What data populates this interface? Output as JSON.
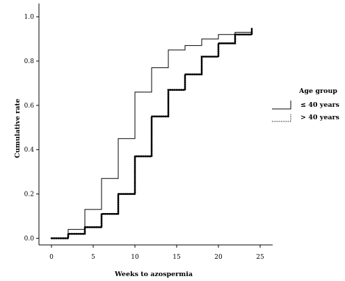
{
  "chart_data": {
    "type": "line",
    "step": true,
    "xlabel": "Weeks to azospermia",
    "ylabel": "Cumulative rate",
    "xlim": [
      -1.5,
      26.5
    ],
    "ylim": [
      -0.03,
      1.06
    ],
    "x_ticks": [
      0,
      5,
      10,
      15,
      20,
      25
    ],
    "x_tick_labels": [
      "0",
      "5",
      "10",
      "15",
      "20",
      "25"
    ],
    "y_ticks": [
      0.0,
      0.2,
      0.4,
      0.6,
      0.8,
      1.0
    ],
    "y_tick_labels": [
      "0.0",
      "0.2",
      "0.4",
      "0.6",
      "0.8",
      "1.0"
    ],
    "grid": false,
    "legend": {
      "title": "Age group",
      "placement": "right"
    },
    "series": [
      {
        "name": "≤ 40 years",
        "line_style": "solid",
        "color": "#000000",
        "steps": [
          [
            0,
            0.0
          ],
          [
            2,
            0.04
          ],
          [
            4,
            0.13
          ],
          [
            6,
            0.27
          ],
          [
            8,
            0.45
          ],
          [
            10,
            0.66
          ],
          [
            12,
            0.77
          ],
          [
            14,
            0.85
          ],
          [
            16,
            0.87
          ],
          [
            18,
            0.9
          ],
          [
            20,
            0.92
          ],
          [
            22,
            0.93
          ],
          [
            24,
            0.94
          ]
        ]
      },
      {
        "name": "> 40 years",
        "line_style": "dotted",
        "color": "#000000",
        "steps": [
          [
            0,
            0.0
          ],
          [
            2,
            0.02
          ],
          [
            4,
            0.05
          ],
          [
            6,
            0.11
          ],
          [
            8,
            0.2
          ],
          [
            10,
            0.37
          ],
          [
            12,
            0.55
          ],
          [
            14,
            0.67
          ],
          [
            16,
            0.74
          ],
          [
            18,
            0.82
          ],
          [
            20,
            0.88
          ],
          [
            22,
            0.92
          ],
          [
            24,
            0.95
          ]
        ]
      }
    ]
  }
}
